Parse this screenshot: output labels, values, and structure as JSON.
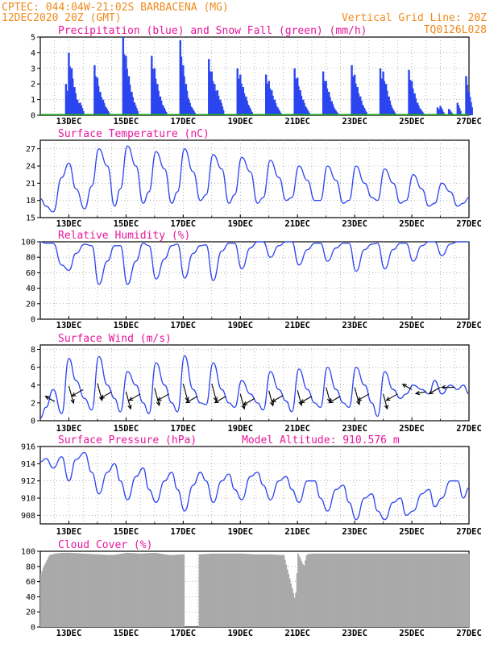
{
  "header": {
    "line1": "CPTEC:   044:04W-21:02S  BARBACENA (MG)",
    "line2": "12DEC2020 20Z (GMT)",
    "grid_note": "Vertical Grid Line: 20Z",
    "code": "TQ0126L028"
  },
  "model_altitude": "Model Altitude: 910.576 m",
  "colors": {
    "header": "#f08a1c",
    "title": "#e8169b",
    "line": "#2b45f0",
    "snow": "#1fa81f",
    "cloud": "#a9a9a9"
  },
  "x_ticks": [
    "13DEC",
    "15DEC",
    "17DEC",
    "19DEC",
    "21DEC",
    "23DEC",
    "25DEC",
    "27DEC"
  ],
  "chart_data": [
    {
      "type": "bar",
      "title": "Precipitation (blue) and Snow Fall (green) (mm/h)",
      "ylim": [
        0,
        5
      ],
      "yticks": [
        0,
        1,
        2,
        3,
        4,
        5
      ],
      "series": [
        {
          "name": "Precipitation (blue)",
          "unit": "mm/h",
          "x_day": [
            12.9,
            13.0,
            13.1,
            13.2,
            13.3,
            13.4,
            13.9,
            14.0,
            14.1,
            14.2,
            14.3,
            14.9,
            15.0,
            15.1,
            15.2,
            15.3,
            15.9,
            16.0,
            16.1,
            16.2,
            16.3,
            16.9,
            17.0,
            17.1,
            17.2,
            17.3,
            17.9,
            18.0,
            18.1,
            18.2,
            18.3,
            18.9,
            19.0,
            19.1,
            19.2,
            19.3,
            19.9,
            20.0,
            20.1,
            20.2,
            20.3,
            20.9,
            21.0,
            21.1,
            21.2,
            21.3,
            21.9,
            22.0,
            22.1,
            22.2,
            22.3,
            22.9,
            23.0,
            23.1,
            23.2,
            23.3,
            23.9,
            24.0,
            24.1,
            24.2,
            24.3,
            24.9,
            25.0,
            25.1,
            25.2,
            25.3,
            25.9,
            26.0,
            26.3,
            26.6,
            26.9,
            27.0
          ],
          "values": [
            2.0,
            4.0,
            3.0,
            1.8,
            1.0,
            0.8,
            3.2,
            2.4,
            1.5,
            1.0,
            0.5,
            5.0,
            3.8,
            2.5,
            1.5,
            0.8,
            3.8,
            3.0,
            2.0,
            1.2,
            0.6,
            4.8,
            3.2,
            2.0,
            1.0,
            0.5,
            3.6,
            2.8,
            2.0,
            1.6,
            1.0,
            3.0,
            2.6,
            1.8,
            1.2,
            0.6,
            2.6,
            2.2,
            1.6,
            1.0,
            0.5,
            3.0,
            2.4,
            1.6,
            1.0,
            0.5,
            2.8,
            2.2,
            1.5,
            0.9,
            0.4,
            3.2,
            2.6,
            1.8,
            1.2,
            0.6,
            3.0,
            2.8,
            2.0,
            1.2,
            0.5,
            2.9,
            2.2,
            1.4,
            0.8,
            0.4,
            0.5,
            0.6,
            0.4,
            0.8,
            2.5,
            1.5
          ]
        },
        {
          "name": "Snow Fall (green)",
          "unit": "mm/h",
          "values": [
            0
          ]
        }
      ]
    },
    {
      "type": "line",
      "title": "Surface Temperature (nC)",
      "ylim": [
        15,
        28.5
      ],
      "yticks": [
        15,
        18,
        21,
        24,
        27
      ],
      "series": [
        {
          "name": "Surface Temperature",
          "x_day": [
            12.0,
            12.2,
            12.45,
            12.75,
            13.0,
            13.25,
            13.55,
            13.8,
            14.05,
            14.35,
            14.6,
            14.8,
            15.05,
            15.35,
            15.6,
            15.8,
            16.05,
            16.35,
            16.6,
            16.8,
            17.05,
            17.35,
            17.6,
            17.8,
            18.05,
            18.35,
            18.6,
            18.8,
            19.05,
            19.35,
            19.6,
            19.8,
            20.05,
            20.35,
            20.6,
            20.8,
            21.05,
            21.35,
            21.6,
            21.8,
            22.05,
            22.35,
            22.6,
            22.8,
            23.05,
            23.35,
            23.6,
            23.8,
            24.05,
            24.35,
            24.6,
            24.8,
            25.05,
            25.35,
            25.6,
            25.8,
            26.05,
            26.35,
            26.6,
            26.8,
            27.0
          ],
          "values": [
            18.3,
            17.0,
            16.0,
            22.0,
            24.5,
            20.0,
            16.5,
            20.5,
            27.0,
            24.0,
            17.0,
            20.0,
            27.5,
            24.0,
            17.5,
            19.5,
            26.5,
            23.5,
            17.5,
            19.5,
            27.0,
            23.0,
            18.0,
            19.0,
            26.0,
            23.5,
            17.5,
            19.0,
            25.5,
            23.0,
            17.5,
            18.5,
            25.0,
            22.0,
            18.0,
            18.5,
            24.0,
            21.5,
            18.0,
            18.0,
            24.0,
            21.5,
            17.5,
            18.0,
            24.0,
            21.0,
            18.5,
            18.0,
            23.5,
            21.0,
            17.5,
            18.0,
            22.5,
            20.0,
            17.0,
            17.5,
            21.0,
            19.5,
            17.0,
            17.5,
            18.5
          ]
        }
      ]
    },
    {
      "type": "line",
      "title": "Relative Humidity (%)",
      "ylim": [
        0,
        100
      ],
      "yticks": [
        0,
        20,
        40,
        60,
        80,
        100
      ],
      "series": [
        {
          "name": "Relative Humidity",
          "x_day": [
            12.0,
            12.2,
            12.45,
            12.75,
            13.0,
            13.25,
            13.55,
            13.8,
            14.05,
            14.35,
            14.6,
            14.8,
            15.05,
            15.35,
            15.6,
            15.8,
            16.05,
            16.35,
            16.6,
            16.8,
            17.05,
            17.35,
            17.6,
            17.8,
            18.05,
            18.35,
            18.6,
            18.8,
            19.05,
            19.35,
            19.6,
            19.8,
            20.05,
            20.35,
            20.6,
            20.8,
            21.05,
            21.35,
            21.6,
            21.8,
            22.05,
            22.35,
            22.6,
            22.8,
            23.05,
            23.35,
            23.6,
            23.8,
            24.05,
            24.35,
            24.6,
            24.8,
            25.05,
            25.35,
            25.6,
            25.8,
            26.05,
            26.35,
            26.6,
            26.8,
            27.0
          ],
          "values": [
            100,
            98,
            98,
            70,
            63,
            85,
            97,
            95,
            45,
            75,
            95,
            95,
            45,
            75,
            98,
            95,
            52,
            78,
            95,
            97,
            53,
            85,
            95,
            96,
            50,
            88,
            98,
            98,
            65,
            92,
            100,
            100,
            80,
            95,
            100,
            100,
            70,
            90,
            98,
            98,
            75,
            92,
            98,
            98,
            62,
            90,
            97,
            98,
            65,
            90,
            98,
            98,
            75,
            95,
            100,
            100,
            82,
            97,
            100,
            100,
            100
          ]
        }
      ]
    },
    {
      "type": "line",
      "title": "Surface Wind (m/s)",
      "ylim": [
        0,
        8.5
      ],
      "yticks": [
        0,
        2,
        4,
        6,
        8
      ],
      "series": [
        {
          "name": "Surface Wind",
          "x_day": [
            12.0,
            12.2,
            12.45,
            12.75,
            13.0,
            13.25,
            13.55,
            13.8,
            14.05,
            14.35,
            14.6,
            14.8,
            15.05,
            15.35,
            15.6,
            15.8,
            16.05,
            16.35,
            16.6,
            16.8,
            17.05,
            17.35,
            17.6,
            17.8,
            18.05,
            18.35,
            18.6,
            18.8,
            19.05,
            19.35,
            19.6,
            19.8,
            20.05,
            20.35,
            20.6,
            20.8,
            21.05,
            21.35,
            21.6,
            21.8,
            22.05,
            22.35,
            22.6,
            22.8,
            23.05,
            23.35,
            23.6,
            23.8,
            24.05,
            24.35,
            24.6,
            24.8,
            25.05,
            25.35,
            25.6,
            25.8,
            26.05,
            26.35,
            26.6,
            26.8,
            27.0
          ],
          "values": [
            0.3,
            1.5,
            3.5,
            0.8,
            7.0,
            4.5,
            2.5,
            1.2,
            7.2,
            4.0,
            2.5,
            1.0,
            5.5,
            4.0,
            2.0,
            0.8,
            6.5,
            4.0,
            2.0,
            1.0,
            7.3,
            3.5,
            2.0,
            1.8,
            6.5,
            3.5,
            2.0,
            1.5,
            4.5,
            3.0,
            2.0,
            1.2,
            5.5,
            3.5,
            2.2,
            1.0,
            5.8,
            3.5,
            2.0,
            1.5,
            6.0,
            3.5,
            2.0,
            1.5,
            6.0,
            4.0,
            2.0,
            0.5,
            5.5,
            3.5,
            2.5,
            3.0,
            4.0,
            3.5,
            3.0,
            4.5,
            3.0,
            4.0,
            3.5,
            4.0,
            3.0
          ]
        },
        {
          "name": "Wind vectors",
          "type": "vector",
          "x_day": [
            12.5,
            13.0,
            13.5,
            14.0,
            14.5,
            15.0,
            15.5,
            16.0,
            16.5,
            17.0,
            17.5,
            18.0,
            18.5,
            19.0,
            19.5,
            20.0,
            20.5,
            21.0,
            21.5,
            22.0,
            22.5,
            23.0,
            23.5,
            24.0,
            24.5,
            25.0,
            25.5,
            26.0,
            26.5
          ],
          "dir_deg": [
            300,
            165,
            240,
            165,
            240,
            165,
            240,
            165,
            240,
            165,
            240,
            165,
            240,
            165,
            240,
            165,
            240,
            165,
            240,
            165,
            240,
            165,
            240,
            165,
            240,
            300,
            260,
            240,
            270
          ],
          "speed": [
            3,
            6,
            4,
            6,
            4,
            6,
            4,
            6,
            4,
            6,
            4,
            6,
            4,
            5,
            4,
            5,
            4,
            5,
            4,
            5,
            4,
            6,
            4,
            5,
            4,
            3,
            3,
            4,
            4
          ]
        }
      ]
    },
    {
      "type": "line",
      "title": "Surface Pressure (hPa)",
      "ylim": [
        907,
        916
      ],
      "yticks": [
        908,
        910,
        912,
        914,
        916
      ],
      "series": [
        {
          "name": "Surface Pressure",
          "x_day": [
            12.0,
            12.2,
            12.45,
            12.75,
            13.0,
            13.25,
            13.55,
            13.8,
            14.05,
            14.35,
            14.6,
            14.8,
            15.05,
            15.35,
            15.6,
            15.8,
            16.05,
            16.35,
            16.6,
            16.8,
            17.05,
            17.35,
            17.6,
            17.8,
            18.05,
            18.35,
            18.6,
            18.8,
            19.05,
            19.35,
            19.6,
            19.8,
            20.05,
            20.35,
            20.6,
            20.8,
            21.05,
            21.35,
            21.6,
            21.8,
            22.05,
            22.35,
            22.6,
            22.8,
            23.05,
            23.35,
            23.6,
            23.8,
            24.05,
            24.35,
            24.6,
            24.8,
            25.05,
            25.35,
            25.6,
            25.8,
            26.05,
            26.35,
            26.6,
            26.8,
            27.0
          ],
          "values": [
            914.2,
            914.6,
            913.5,
            914.8,
            912.0,
            914.5,
            915.3,
            913.0,
            910.5,
            913.0,
            914.0,
            912.0,
            909.8,
            912.5,
            913.5,
            911.0,
            909.5,
            912.0,
            913.0,
            911.0,
            908.5,
            911.5,
            913.0,
            912.0,
            909.5,
            912.0,
            912.8,
            911.0,
            909.8,
            912.5,
            913.0,
            911.5,
            909.8,
            912.0,
            912.5,
            911.0,
            909.5,
            912.0,
            912.0,
            910.0,
            908.5,
            911.0,
            911.5,
            909.5,
            907.5,
            910.0,
            910.5,
            908.5,
            907.5,
            909.5,
            910.0,
            908.0,
            908.5,
            910.5,
            911.0,
            909.0,
            910.0,
            912.0,
            912.0,
            910.0,
            911.2
          ]
        }
      ]
    },
    {
      "type": "bar",
      "title": "Cloud Cover (%)",
      "ylim": [
        0,
        100
      ],
      "yticks": [
        0,
        20,
        40,
        60,
        80,
        100
      ],
      "series": [
        {
          "name": "Cloud Cover",
          "x_day": [
            12.0,
            12.1,
            12.3,
            12.5,
            12.8,
            13.0,
            13.5,
            14.0,
            14.5,
            15.0,
            15.5,
            16.0,
            16.5,
            17.0,
            17.5,
            17.6,
            18.0,
            18.5,
            19.0,
            19.5,
            20.0,
            20.5,
            20.9,
            21.0,
            21.2,
            21.3,
            21.5,
            22.0,
            22.5,
            23.0,
            23.5,
            24.0,
            24.5,
            25.0,
            25.5,
            26.0,
            26.5,
            27.0
          ],
          "values": [
            70,
            80,
            95,
            97,
            98,
            98,
            97,
            96,
            95,
            98,
            97,
            98,
            95,
            96,
            0,
            96,
            97,
            97,
            97,
            96,
            96,
            95,
            35,
            97,
            80,
            96,
            97,
            97,
            97,
            97,
            97,
            97,
            97,
            97,
            97,
            97,
            97,
            97
          ]
        }
      ]
    }
  ]
}
